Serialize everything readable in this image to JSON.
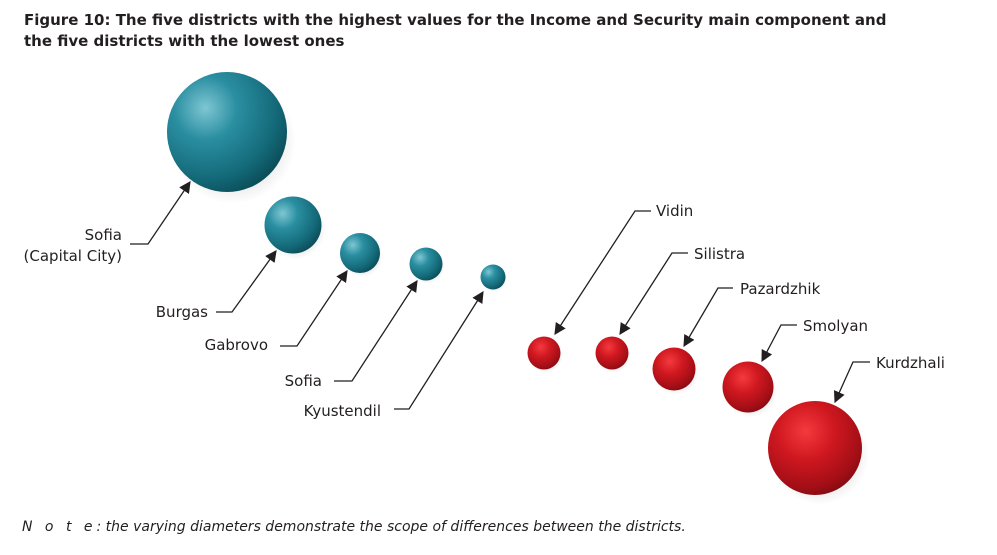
{
  "title_line1": "Figure 10: The five districts with the highest values for the Income and Security main component and",
  "title_line2": "the five districts with the lowest ones",
  "note": {
    "prefix": "N o t e",
    "text": ": the varying diameters demonstrate the scope of differences between the districts."
  },
  "colors": {
    "high": "#1a7d8e",
    "low": "#c8141c",
    "text": "#231f20"
  },
  "chart_data": {
    "type": "scatter",
    "title": "Figure 10: The five districts with the highest values for the Income and Security main component and the five districts with the lowest ones",
    "encoding": "bubble diameter",
    "series": [
      {
        "group": "highest",
        "points": [
          {
            "label": "Sofia (Capital City)",
            "diameter": 120
          },
          {
            "label": "Burgas",
            "diameter": 57
          },
          {
            "label": "Gabrovo",
            "diameter": 40
          },
          {
            "label": "Sofia",
            "diameter": 33
          },
          {
            "label": "Kyustendil",
            "diameter": 25
          }
        ]
      },
      {
        "group": "lowest",
        "points": [
          {
            "label": "Vidin",
            "diameter": 33
          },
          {
            "label": "Silistra",
            "diameter": 33
          },
          {
            "label": "Pazardzhik",
            "diameter": 43
          },
          {
            "label": "Smolyan",
            "diameter": 51
          },
          {
            "label": "Kurdzhali",
            "diameter": 94
          }
        ]
      }
    ]
  }
}
